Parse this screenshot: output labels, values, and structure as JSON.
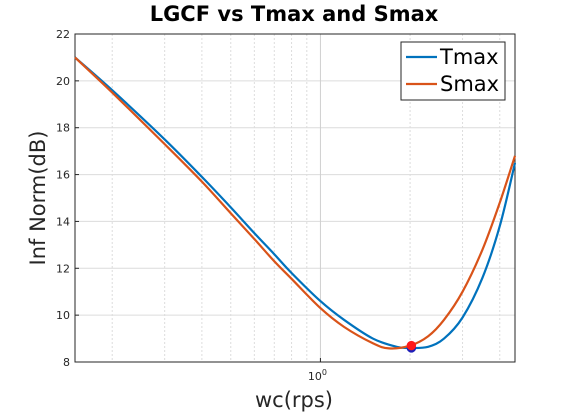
{
  "chart_data": {
    "type": "line",
    "title": "LGCF vs Tmax and Smax",
    "xlabel": "wc(rps)",
    "ylabel": "Inf Norm(dB)",
    "xscale": "log",
    "xlim": [
      0.15,
      4.5
    ],
    "ylim": [
      8,
      22
    ],
    "yticks": [
      8,
      10,
      12,
      14,
      16,
      18,
      20,
      22
    ],
    "xticks": [
      {
        "value": 1,
        "base": "10",
        "exp": "0"
      }
    ],
    "grid": true,
    "legend_position": "top-right",
    "colors": {
      "Tmax": "#0072BD",
      "Smax": "#D95319",
      "Tmax_marker": "#1f1fb8",
      "Smax_marker": "#ff1a1a"
    },
    "series": [
      {
        "name": "Tmax",
        "x": [
          0.15,
          0.2,
          0.3,
          0.4,
          0.5,
          0.6,
          0.7,
          0.8,
          1.0,
          1.2,
          1.5,
          1.8,
          2.0,
          2.3,
          2.6,
          3.0,
          3.5,
          4.0,
          4.5
        ],
        "y": [
          21.0,
          19.6,
          17.5,
          15.9,
          14.6,
          13.5,
          12.6,
          11.8,
          10.6,
          9.8,
          9.0,
          8.65,
          8.6,
          8.65,
          9.0,
          9.9,
          11.6,
          13.8,
          16.5
        ]
      },
      {
        "name": "Smax",
        "x": [
          0.15,
          0.2,
          0.3,
          0.4,
          0.5,
          0.6,
          0.7,
          0.8,
          1.0,
          1.2,
          1.5,
          1.7,
          2.0,
          2.3,
          2.6,
          3.0,
          3.5,
          4.0,
          4.5
        ],
        "y": [
          21.0,
          19.5,
          17.3,
          15.7,
          14.35,
          13.25,
          12.3,
          11.55,
          10.3,
          9.5,
          8.8,
          8.58,
          8.7,
          9.1,
          9.8,
          11.0,
          12.8,
          14.8,
          16.8
        ]
      }
    ],
    "markers": [
      {
        "series": "Tmax",
        "x": 2.02,
        "y": 8.6
      },
      {
        "series": "Smax",
        "x": 2.02,
        "y": 8.7
      }
    ]
  }
}
